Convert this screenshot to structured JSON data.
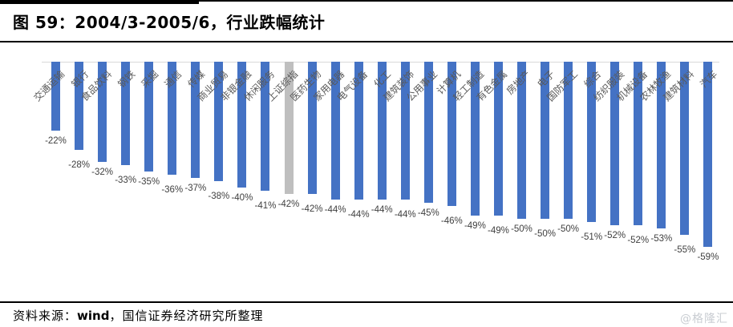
{
  "page": {
    "title": "图 59：2004/3-2005/6，行业跌幅统计",
    "footer": {
      "prefix": "资料来源：",
      "source": "wind",
      "suffix": "，国信证券经济研究所整理"
    },
    "watermark": "@格隆汇"
  },
  "chart_data": {
    "type": "bar",
    "title": "图 59：2004/3-2005/6，行业跌幅统计",
    "categories": [
      "交通运输",
      "银行",
      "食品饮料",
      "钢铁",
      "采掘",
      "通信",
      "传媒",
      "商业贸易",
      "非银金融",
      "休闲服务",
      "上证综指",
      "医药生物",
      "家用电器",
      "电气设备",
      "化工",
      "建筑装饰",
      "公用事业",
      "计算机",
      "轻工制造",
      "有色金属",
      "房地产",
      "电子",
      "国防军工",
      "综合",
      "纺织服装",
      "机械设备",
      "农林牧渔",
      "建筑材料",
      "汽车"
    ],
    "values": [
      -22,
      -28,
      -32,
      -33,
      -35,
      -36,
      -37,
      -38,
      -40,
      -41,
      -42,
      -42,
      -44,
      -44,
      -44,
      -44,
      -45,
      -46,
      -49,
      -49,
      -50,
      -50,
      -50,
      -51,
      -52,
      -52,
      -53,
      -55,
      -59
    ],
    "value_label_suffix": "%",
    "bar_color": "#4472C4",
    "highlight_index": 10,
    "highlight_category": "上证综指",
    "highlight_color": "#BFBFBF",
    "zero_line_color": "#D9D9D9",
    "xlabel": "",
    "ylabel": "",
    "ylim": [
      -65,
      0
    ],
    "gridlines": false,
    "legend": "none",
    "category_label_rotation_deg": 45,
    "value_label_position": "outside-end-below"
  }
}
